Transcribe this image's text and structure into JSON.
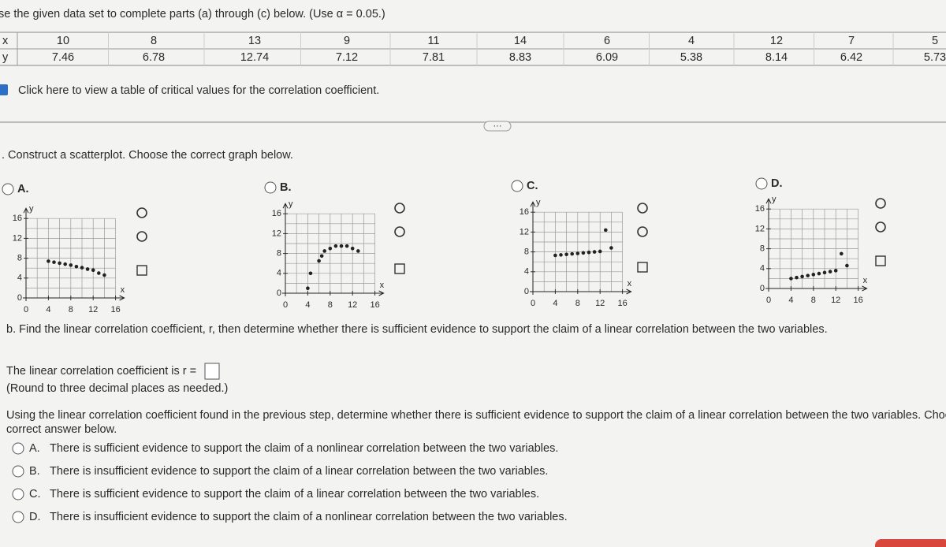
{
  "header": {
    "instruction": "se the given data set to complete parts (a) through (c) below. (Use α = 0.05.)"
  },
  "table": {
    "rows": [
      {
        "label": "x",
        "values": [
          10,
          8,
          13,
          9,
          11,
          14,
          6,
          4,
          12,
          7,
          5
        ]
      },
      {
        "label": "y",
        "values": [
          7.46,
          6.78,
          12.74,
          7.12,
          7.81,
          8.83,
          6.09,
          5.38,
          8.14,
          6.42,
          5.73
        ]
      }
    ]
  },
  "critical_values_link": "Click here to view a table of critical values for the correlation coefficient.",
  "part_a": {
    "prompt": ". Construct a scatterplot. Choose the correct graph below.",
    "options": [
      {
        "label": "A.",
        "plot": {
          "x_label": "x",
          "y_label": "y",
          "xticks": [
            0,
            4,
            8,
            12,
            16
          ],
          "yticks": [
            0,
            4,
            8,
            12,
            16
          ],
          "x": [
            4,
            5,
            6,
            7,
            8,
            9,
            10,
            11,
            12,
            13,
            14
          ],
          "y": [
            7.4,
            7.2,
            7.0,
            6.8,
            6.6,
            6.3,
            6.1,
            5.8,
            5.6,
            5.0,
            4.6
          ]
        }
      },
      {
        "label": "B.",
        "plot": {
          "x_label": "x",
          "y_label": "y",
          "xticks": [
            0,
            4,
            8,
            12,
            16
          ],
          "yticks": [
            0,
            4,
            8,
            12,
            16
          ],
          "x": [
            4,
            4.5,
            6,
            6.5,
            7,
            8,
            9,
            10,
            11,
            12,
            13
          ],
          "y": [
            1,
            4,
            6.5,
            7.5,
            8.5,
            9,
            9.5,
            9.5,
            9.5,
            9,
            8.5
          ]
        }
      },
      {
        "label": "C.",
        "plot": {
          "x_label": "x",
          "y_label": "y",
          "xticks": [
            0,
            4,
            8,
            12,
            16
          ],
          "yticks": [
            0,
            4,
            8,
            12,
            16
          ],
          "x": [
            4,
            5,
            6,
            7,
            8,
            9,
            10,
            11,
            12,
            13,
            14
          ],
          "y": [
            7.3,
            7.4,
            7.5,
            7.6,
            7.7,
            7.8,
            7.9,
            8.0,
            8.1,
            12.4,
            8.8
          ]
        }
      },
      {
        "label": "D.",
        "plot": {
          "x_label": "x",
          "y_label": "y",
          "xticks": [
            0,
            4,
            8,
            12,
            16
          ],
          "yticks": [
            0,
            4,
            8,
            12,
            16
          ],
          "x": [
            4,
            5,
            6,
            7,
            8,
            9,
            10,
            11,
            12,
            13,
            14
          ],
          "y": [
            2.0,
            2.2,
            2.4,
            2.6,
            2.8,
            3.0,
            3.2,
            3.4,
            3.6,
            7.0,
            4.6
          ]
        }
      }
    ]
  },
  "part_b": {
    "prompt": "b. Find the linear correlation coefficient, r, then determine whether there is sufficient evidence to support the claim of a linear correlation between the two variables.",
    "r_text": "The linear correlation coefficient is r =",
    "round_note": "(Round to three decimal places as needed.)",
    "question_lines": [
      "Using the linear correlation coefficient found in the previous step, determine whether there is sufficient evidence to support the claim of a linear correlation between the two variables. Choose t",
      "correct answer below."
    ],
    "options": [
      {
        "label": "A.",
        "text": "There is sufficient evidence to support the claim of a nonlinear correlation between the two variables."
      },
      {
        "label": "B.",
        "text": "There is insufficient evidence to support the claim of a linear correlation between the two variables."
      },
      {
        "label": "C.",
        "text": "There is sufficient evidence to support the claim of a linear correlation between the two variables."
      },
      {
        "label": "D.",
        "text": "There is insufficient evidence to support the claim of a nonlinear correlation between the two variables."
      }
    ]
  }
}
